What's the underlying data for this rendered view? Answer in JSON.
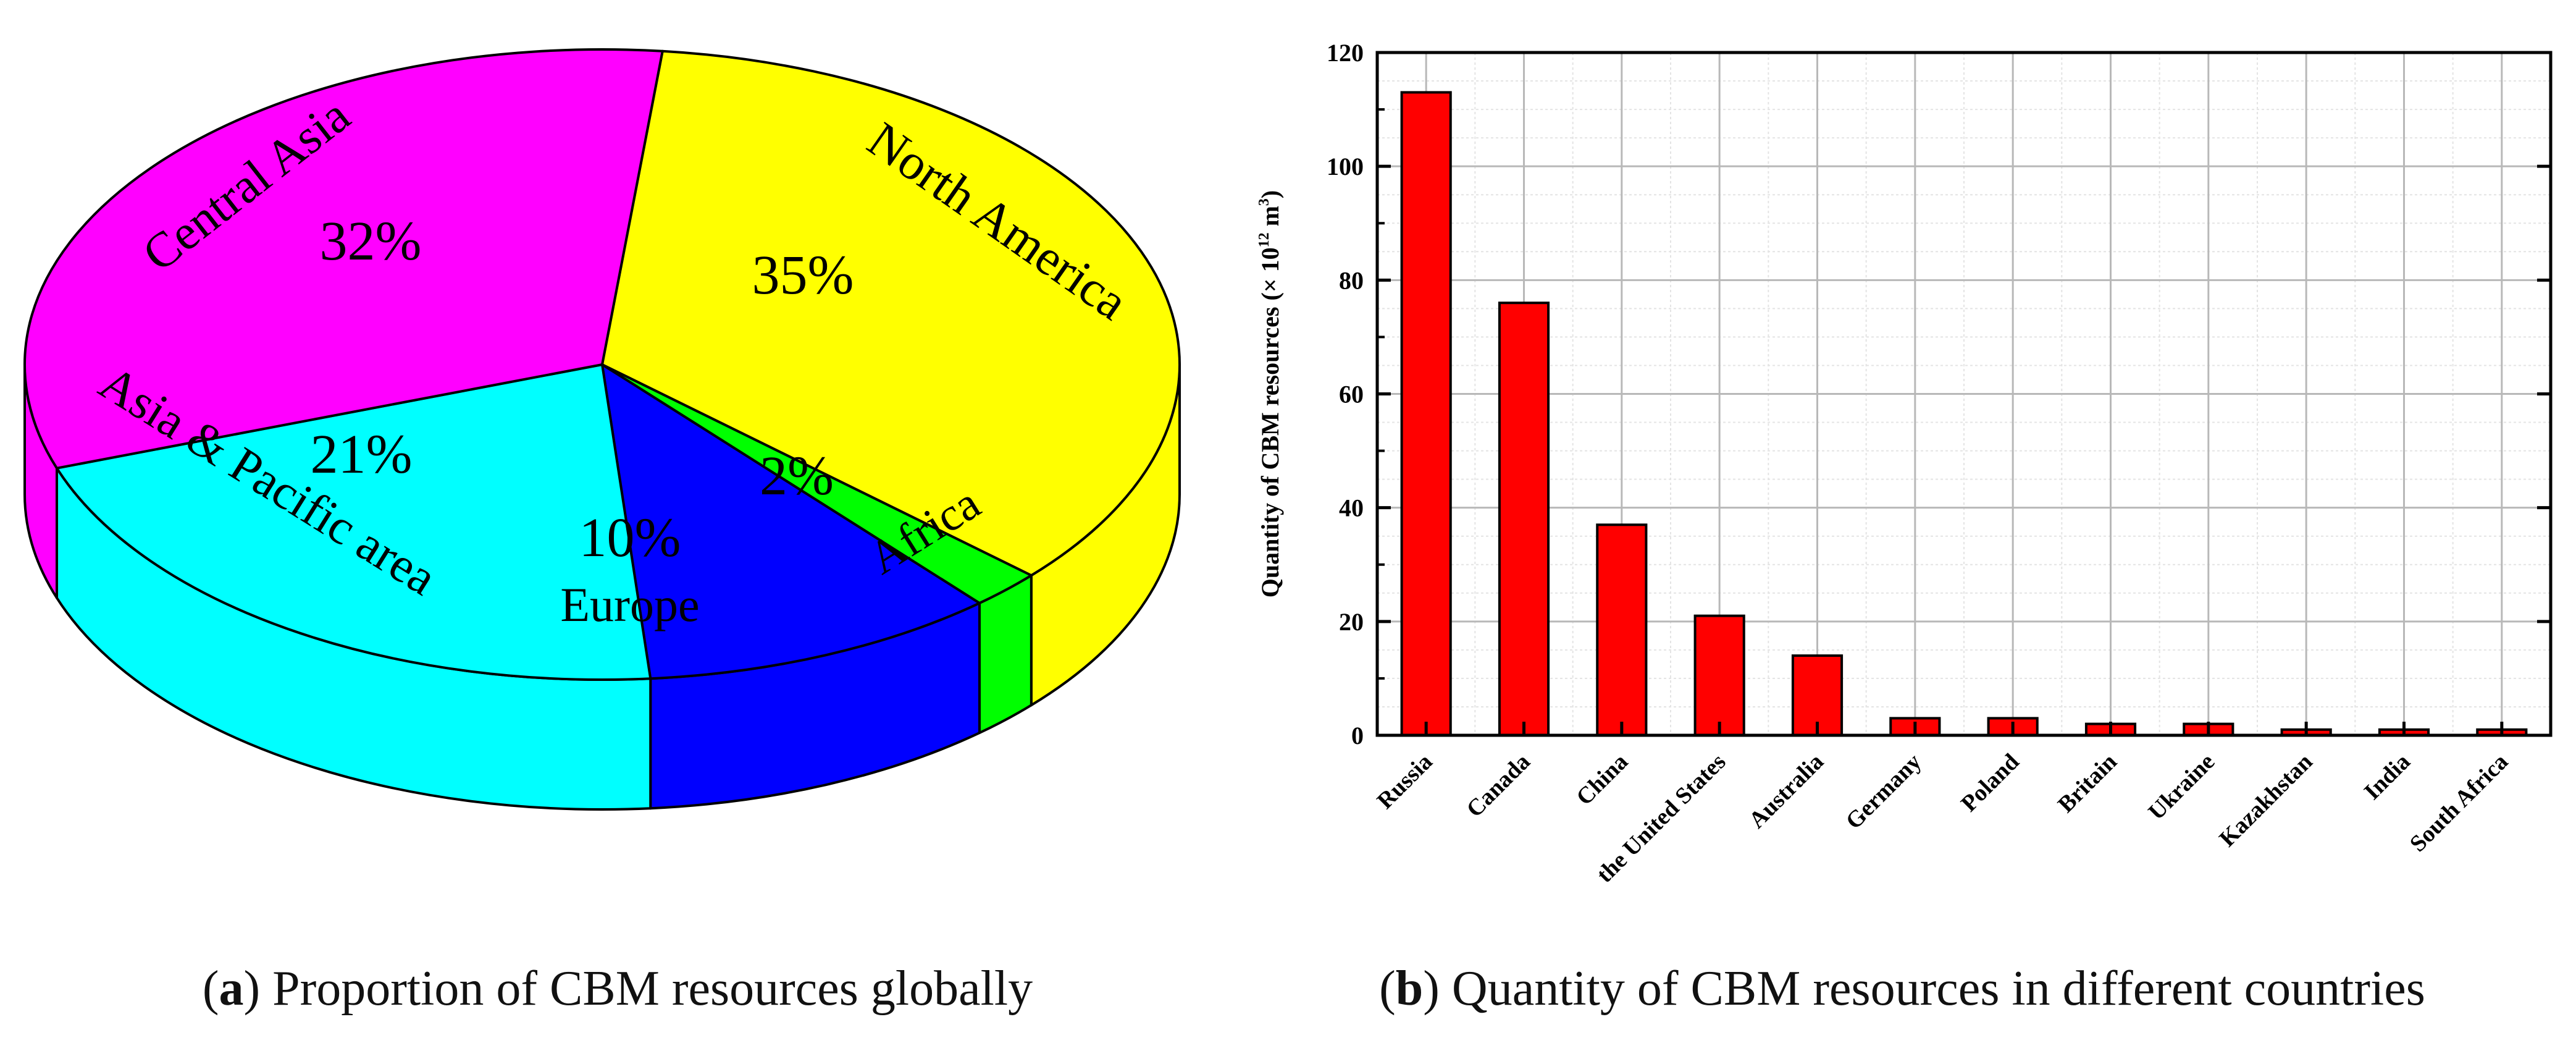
{
  "chart_data": [
    {
      "type": "pie",
      "title": "Proportion of CBM resources globally",
      "slices": [
        {
          "label": "North America",
          "percent_label": "35%",
          "value": 35,
          "color": "#ffff00"
        },
        {
          "label": "Africa",
          "percent_label": "2%",
          "value": 2,
          "color": "#00ff00"
        },
        {
          "label": "Europe",
          "percent_label": "10%",
          "value": 10,
          "color": "#0000ff"
        },
        {
          "label": "Asia & Pacific area",
          "percent_label": "21%",
          "value": 21,
          "color": "#00ffff"
        },
        {
          "label": "Central Asia",
          "percent_label": "32%",
          "value": 32,
          "color": "#ff00ff"
        }
      ]
    },
    {
      "type": "bar",
      "title": "Quantity of CBM resources in different countries",
      "ylabel": "Quantity of CBM resources (× 10",
      "ylabel_exp": "12",
      "ylabel_unit": " m",
      "ylabel_unit_exp": "3",
      "ylabel_close": ")",
      "ylim": [
        0,
        120
      ],
      "yticks": [
        0,
        20,
        40,
        60,
        80,
        100,
        120
      ],
      "grid": true,
      "bar_color": "#ff0000",
      "categories": [
        "Russia",
        "Canada",
        "China",
        "the United States",
        "Australia",
        "Germany",
        "Poland",
        "Britain",
        "Ukraine",
        "Kazakhstan",
        "India",
        "South Africa"
      ],
      "values": [
        113,
        76,
        37,
        21,
        14,
        3,
        3,
        2,
        2,
        1,
        1,
        1
      ]
    }
  ],
  "captions": {
    "a_letter": "a",
    "a_text": " Proportion of CBM resources globally",
    "b_letter": "b",
    "b_text": " Quantity of CBM resources in different countries"
  }
}
